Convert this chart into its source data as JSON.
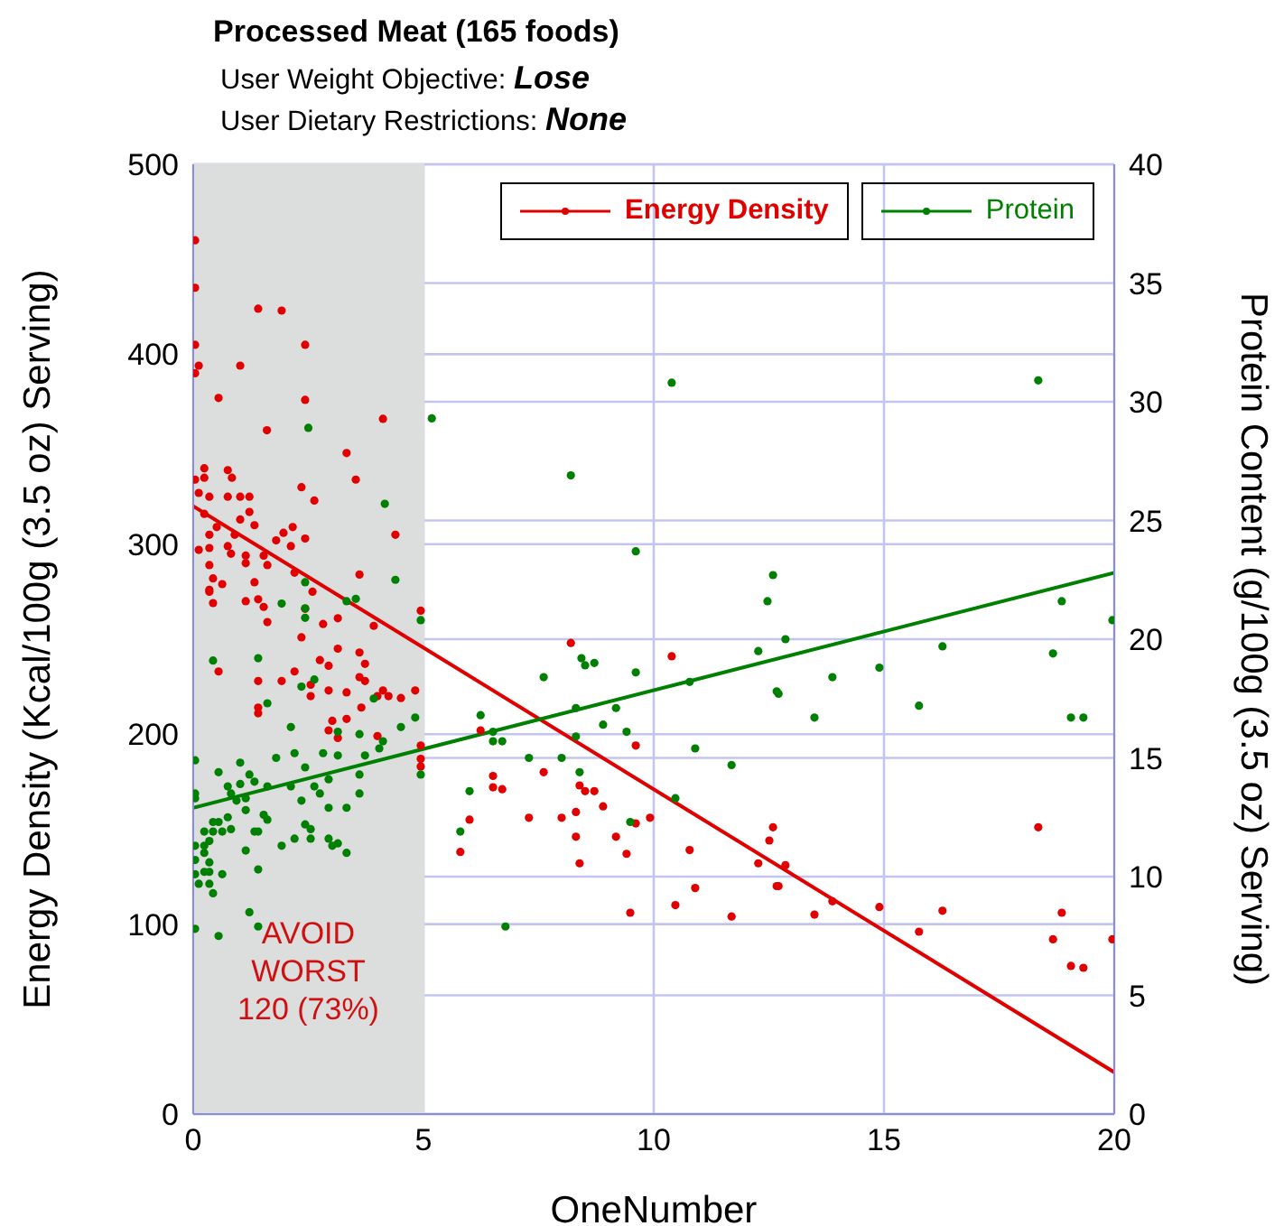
{
  "chart_data": {
    "type": "scatter",
    "title": "Processed Meat (165 foods)",
    "subtitle": "User Weight Objective: Lose\nUser Dietary Restrictions: None",
    "xlabel": "OneNumber",
    "ylabel": "Energy Density (Kcal/100g (3.5 oz) Serving)",
    "y2label": "Protein Content (g/100g (3.5 oz) Serving)",
    "xlim": [
      0,
      20
    ],
    "xticks": [
      0,
      5,
      10,
      15,
      20
    ],
    "ylim": [
      0,
      500
    ],
    "yticks": [
      0,
      100,
      200,
      300,
      400,
      500
    ],
    "y2lim": [
      0,
      40
    ],
    "y2ticks": [
      0,
      5,
      10,
      15,
      20,
      25,
      30,
      35,
      40
    ],
    "grid": true,
    "legend": "top right",
    "marker": "circle",
    "line_style": "solid",
    "bands": [
      {
        "axis": "x",
        "from": 0,
        "to": 5,
        "label": "AVOID\nWORST\n120 (73%)",
        "color": "#dcdddd"
      }
    ],
    "series": [
      {
        "name": "Energy Density",
        "color": "#e00000",
        "x": [
          0.04,
          0.04,
          1.41,
          1.92,
          0.04,
          2.43,
          0.12,
          0.04,
          1.02,
          0.55,
          2.43,
          1.6,
          4.12,
          3.33,
          3.53,
          0.24,
          0.75,
          0.04,
          0.24,
          0.84,
          0.12,
          0.35,
          0.75,
          1.02,
          1.22,
          2.35,
          2.63,
          1.22,
          0.24,
          0.51,
          1.02,
          1.33,
          2.16,
          1.96,
          0.35,
          0.9,
          1.8,
          2.43,
          4.39,
          2.12,
          0.12,
          0.35,
          0.75,
          0.82,
          1.14,
          1.53,
          1.14,
          0.35,
          1.61,
          2.2,
          3.61,
          0.43,
          1.33,
          0.63,
          2.59,
          0.35,
          0.35,
          1.14,
          1.41,
          0.43,
          1.53,
          4.94,
          2.43,
          3.14,
          2.82,
          1.61,
          3.92,
          2.35,
          3.14,
          3.61,
          2.75,
          3.73,
          0.55,
          2.94,
          2.2,
          1.41,
          1.92,
          3.61,
          3.73,
          2.55,
          2.55,
          2.94,
          3.33,
          4.12,
          4.0,
          4.24,
          4.51,
          4.82,
          1.41,
          1.41,
          3.65,
          3.02,
          3.33,
          2.94,
          3.14,
          4.0,
          4.94,
          4.94,
          4.94,
          8.2,
          10.39,
          6.24,
          9.61,
          6.51,
          7.61,
          6.51,
          6.71,
          8.39,
          8.51,
          8.71,
          8.9,
          6.0,
          7.29,
          8.0,
          8.31,
          8.31,
          9.18,
          9.61,
          9.92,
          5.8,
          8.39,
          9.41,
          10.78,
          9.49,
          10.47,
          10.9,
          11.69,
          12.27,
          12.51,
          12.59,
          12.67,
          18.35,
          12.86,
          12.71,
          13.88,
          13.49,
          14.9,
          16.27,
          15.76,
          18.86,
          18.67,
          19.96,
          19.06,
          19.33
        ],
        "values": [
          460,
          435,
          424,
          423,
          405,
          405,
          394,
          390,
          394,
          377,
          376,
          360,
          366,
          348,
          334,
          340,
          339,
          334,
          335,
          335,
          327,
          325,
          325,
          325,
          325,
          330,
          323,
          317,
          316,
          309,
          313,
          310,
          309,
          306,
          305,
          305,
          302,
          303,
          305,
          299,
          297,
          298,
          299,
          295,
          294,
          294,
          290,
          289,
          289,
          285,
          284,
          282,
          280,
          279,
          275,
          276,
          275,
          270,
          271,
          269,
          267,
          265,
          266,
          261,
          258,
          259,
          257,
          251,
          245,
          243,
          239,
          237,
          233,
          236,
          233,
          228,
          228,
          230,
          228,
          226,
          220,
          223,
          222,
          223,
          220,
          220,
          219,
          223,
          214,
          211,
          214,
          207,
          208,
          202,
          198,
          199,
          194,
          187,
          183,
          248,
          241,
          202,
          194,
          178,
          180,
          172,
          171,
          173,
          170,
          170,
          162,
          155,
          156,
          156,
          159,
          146,
          146,
          153,
          156,
          138,
          132,
          137,
          139,
          106,
          110,
          119,
          104,
          132,
          144,
          151,
          120,
          151,
          131,
          120,
          112,
          105,
          109,
          107,
          96,
          106,
          92,
          92,
          78,
          77
        ]
      },
      {
        "name": "Protein",
        "axis": "y2",
        "color": "#008000",
        "x": [
          2.5,
          5.18,
          4.16,
          4.39,
          2.43,
          3.33,
          3.53,
          1.92,
          2.43,
          2.43,
          4.94,
          0.43,
          1.41,
          2.63,
          2.35,
          1.61,
          3.92,
          4.82,
          2.12,
          4.51,
          3.14,
          3.61,
          4.12,
          0.04,
          0.55,
          1.02,
          1.8,
          2.2,
          2.82,
          3.14,
          3.73,
          4.04,
          2.43,
          3.61,
          4.94,
          1.22,
          1.02,
          1.33,
          0.75,
          1.61,
          2.12,
          2.63,
          2.94,
          0.04,
          0.04,
          0.82,
          0.94,
          1.14,
          2.75,
          3.61,
          2.35,
          2.94,
          3.33,
          0.43,
          0.55,
          0.75,
          1.14,
          1.53,
          1.61,
          0.24,
          0.43,
          0.63,
          0.82,
          1.33,
          1.41,
          2.2,
          2.43,
          2.55,
          2.55,
          2.94,
          3.02,
          3.14,
          3.33,
          1.92,
          1.14,
          0.35,
          0.04,
          0.24,
          0.24,
          0.35,
          0.04,
          0.04,
          0.24,
          0.35,
          0.63,
          1.41,
          0.12,
          0.35,
          0.43,
          1.22,
          1.41,
          0.04,
          0.55,
          10.39,
          8.2,
          9.61,
          12.59,
          12.47,
          12.27,
          8.43,
          8.51,
          8.71,
          9.61,
          7.61,
          10.78,
          12.67,
          8.31,
          9.18,
          6.24,
          8.9,
          6.51,
          9.41,
          8.31,
          6.51,
          6.71,
          10.9,
          7.29,
          8.0,
          11.69,
          8.39,
          6.0,
          10.47,
          9.49,
          5.8,
          6.78,
          18.35,
          18.86,
          19.96,
          12.86,
          16.27,
          18.67,
          14.9,
          13.88,
          12.71,
          15.76,
          13.49,
          19.06,
          19.33
        ],
        "values": [
          28.9,
          29.3,
          25.7,
          22.5,
          22.4,
          21.6,
          21.7,
          21.5,
          21.3,
          20.9,
          20.8,
          19.1,
          19.2,
          18.3,
          18.0,
          17.3,
          17.5,
          16.7,
          16.3,
          16.3,
          16.1,
          16.0,
          15.7,
          14.9,
          14.4,
          14.8,
          15.0,
          15.2,
          15.2,
          15.1,
          15.1,
          15.4,
          14.6,
          14.3,
          14.3,
          14.3,
          13.9,
          14.0,
          13.8,
          13.8,
          13.8,
          13.8,
          14.1,
          13.5,
          13.3,
          13.5,
          13.2,
          13.3,
          13.5,
          13.5,
          13.2,
          12.9,
          12.9,
          12.3,
          12.3,
          12.5,
          12.8,
          12.6,
          12.4,
          11.9,
          11.9,
          11.9,
          12.0,
          11.9,
          11.9,
          11.6,
          12.2,
          12.0,
          11.6,
          11.6,
          11.3,
          11.4,
          11.0,
          11.3,
          11.1,
          11.5,
          11.3,
          11.3,
          11.0,
          10.6,
          10.7,
          10.1,
          10.2,
          10.2,
          10.1,
          10.3,
          9.7,
          9.7,
          9.3,
          8.5,
          7.9,
          7.8,
          7.5,
          30.8,
          26.9,
          23.7,
          22.7,
          21.6,
          19.5,
          19.2,
          18.9,
          19.0,
          18.6,
          18.4,
          18.2,
          17.8,
          17.1,
          17.1,
          16.8,
          16.4,
          16.1,
          16.1,
          15.9,
          15.7,
          15.7,
          15.4,
          15.0,
          15.0,
          14.7,
          14.4,
          13.6,
          13.3,
          12.3,
          11.9,
          7.9,
          30.9,
          21.6,
          20.8,
          20.0,
          19.7,
          19.4,
          18.8,
          18.4,
          17.7,
          17.2,
          16.7,
          16.7,
          16.7
        ]
      },
      {
        "type": "line",
        "marker": "none",
        "color": "#e00000",
        "x": [
          0,
          20
        ],
        "values": [
          320,
          22
        ]
      },
      {
        "type": "line",
        "marker": "none",
        "axis": "y2",
        "color": "#008000",
        "x": [
          0,
          20
        ],
        "values": [
          12.9,
          22.8
        ]
      }
    ]
  }
}
